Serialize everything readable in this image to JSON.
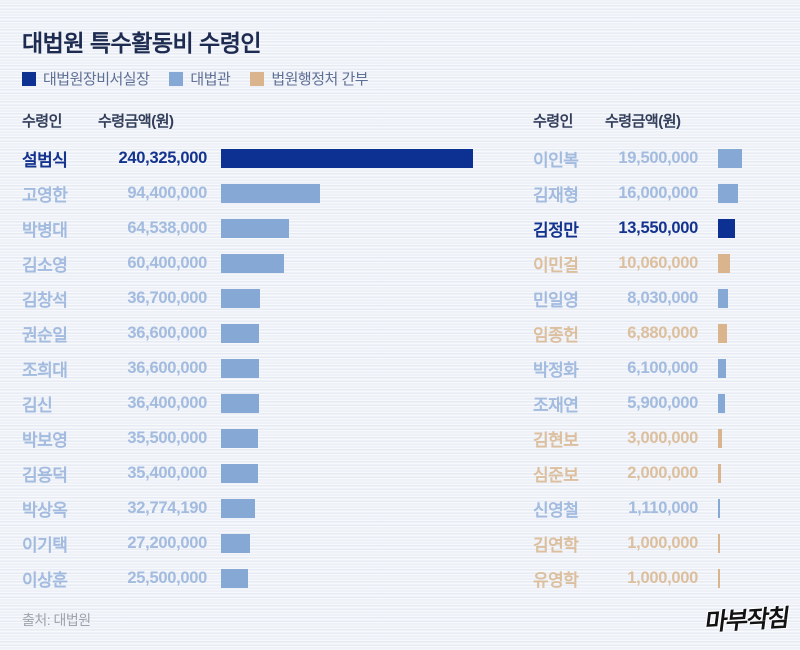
{
  "title": "대법원 특수활동비 수령인",
  "legend": [
    {
      "key": "chief",
      "label": "대법원장비서실장",
      "color": "#0c3193",
      "text_color": "#14338f"
    },
    {
      "key": "justice",
      "label": "대법관",
      "color": "#85a9d4",
      "text_color": "#a2bbdf"
    },
    {
      "key": "admin",
      "label": "법원행정처 간부",
      "color": "#d9b48c",
      "text_color": "#dcbf9e"
    }
  ],
  "headers": {
    "recipient": "수령인",
    "amount": "수령금액(원)"
  },
  "rows": {
    "left": [
      {
        "name": "설범식",
        "amount": "240,325,000",
        "value": 240325000,
        "group": "chief"
      },
      {
        "name": "고영한",
        "amount": "94,400,000",
        "value": 94400000,
        "group": "justice"
      },
      {
        "name": "박병대",
        "amount": "64,538,000",
        "value": 64538000,
        "group": "justice"
      },
      {
        "name": "김소영",
        "amount": "60,400,000",
        "value": 60400000,
        "group": "justice"
      },
      {
        "name": "김창석",
        "amount": "36,700,000",
        "value": 36700000,
        "group": "justice"
      },
      {
        "name": "권순일",
        "amount": "36,600,000",
        "value": 36600000,
        "group": "justice"
      },
      {
        "name": "조희대",
        "amount": "36,600,000",
        "value": 36600000,
        "group": "justice"
      },
      {
        "name": "김신",
        "amount": "36,400,000",
        "value": 36400000,
        "group": "justice"
      },
      {
        "name": "박보영",
        "amount": "35,500,000",
        "value": 35500000,
        "group": "justice"
      },
      {
        "name": "김용덕",
        "amount": "35,400,000",
        "value": 35400000,
        "group": "justice"
      },
      {
        "name": "박상옥",
        "amount": "32,774,190",
        "value": 32774190,
        "group": "justice"
      },
      {
        "name": "이기택",
        "amount": "27,200,000",
        "value": 27200000,
        "group": "justice"
      },
      {
        "name": "이상훈",
        "amount": "25,500,000",
        "value": 25500000,
        "group": "justice"
      }
    ],
    "right": [
      {
        "name": "이인복",
        "amount": "19,500,000",
        "value": 19500000,
        "group": "justice"
      },
      {
        "name": "김재형",
        "amount": "16,000,000",
        "value": 16000000,
        "group": "justice"
      },
      {
        "name": "김정만",
        "amount": "13,550,000",
        "value": 13550000,
        "group": "chief"
      },
      {
        "name": "이민걸",
        "amount": "10,060,000",
        "value": 10060000,
        "group": "admin"
      },
      {
        "name": "민일영",
        "amount": "8,030,000",
        "value": 8030000,
        "group": "justice"
      },
      {
        "name": "임종헌",
        "amount": "6,880,000",
        "value": 6880000,
        "group": "admin"
      },
      {
        "name": "박정화",
        "amount": "6,100,000",
        "value": 6100000,
        "group": "justice"
      },
      {
        "name": "조재연",
        "amount": "5,900,000",
        "value": 5900000,
        "group": "justice"
      },
      {
        "name": "김현보",
        "amount": "3,000,000",
        "value": 3000000,
        "group": "admin"
      },
      {
        "name": "심준보",
        "amount": "2,000,000",
        "value": 2000000,
        "group": "admin"
      },
      {
        "name": "신영철",
        "amount": "1,110,000",
        "value": 1110000,
        "group": "justice"
      },
      {
        "name": "김연학",
        "amount": "1,000,000",
        "value": 1000000,
        "group": "admin"
      },
      {
        "name": "유영학",
        "amount": "1,000,000",
        "value": 1000000,
        "group": "admin"
      }
    ]
  },
  "source": "출처: 대법원",
  "logo": "마부작침",
  "chart_data": {
    "type": "bar",
    "orientation": "horizontal",
    "title": "대법원 특수활동비 수령인",
    "unit": "원",
    "legend": [
      "대법원장비서실장",
      "대법관",
      "법원행정처 간부"
    ],
    "legend_position": "top",
    "grid": false,
    "categories": [
      "설범식",
      "고영한",
      "박병대",
      "김소영",
      "김창석",
      "권순일",
      "조희대",
      "김신",
      "박보영",
      "김용덕",
      "박상옥",
      "이기택",
      "이상훈",
      "이인복",
      "김재형",
      "김정만",
      "이민걸",
      "민일영",
      "임종헌",
      "박정화",
      "조재연",
      "김현보",
      "심준보",
      "신영철",
      "김연학",
      "유영학"
    ],
    "values": [
      240325000,
      94400000,
      64538000,
      60400000,
      36700000,
      36600000,
      36600000,
      36400000,
      35500000,
      35400000,
      32774190,
      27200000,
      25500000,
      19500000,
      16000000,
      13550000,
      10060000,
      8030000,
      6880000,
      6100000,
      5900000,
      3000000,
      2000000,
      1110000,
      1000000,
      1000000
    ],
    "groups": [
      "대법원장비서실장",
      "대법관",
      "대법관",
      "대법관",
      "대법관",
      "대법관",
      "대법관",
      "대법관",
      "대법관",
      "대법관",
      "대법관",
      "대법관",
      "대법관",
      "대법관",
      "대법관",
      "대법원장비서실장",
      "법원행정처 간부",
      "대법관",
      "법원행정처 간부",
      "대법관",
      "대법관",
      "법원행정처 간부",
      "법원행정처 간부",
      "대법관",
      "법원행정처 간부",
      "법원행정처 간부"
    ],
    "xlim": [
      0,
      240325000
    ],
    "source": "출처: 대법원"
  }
}
